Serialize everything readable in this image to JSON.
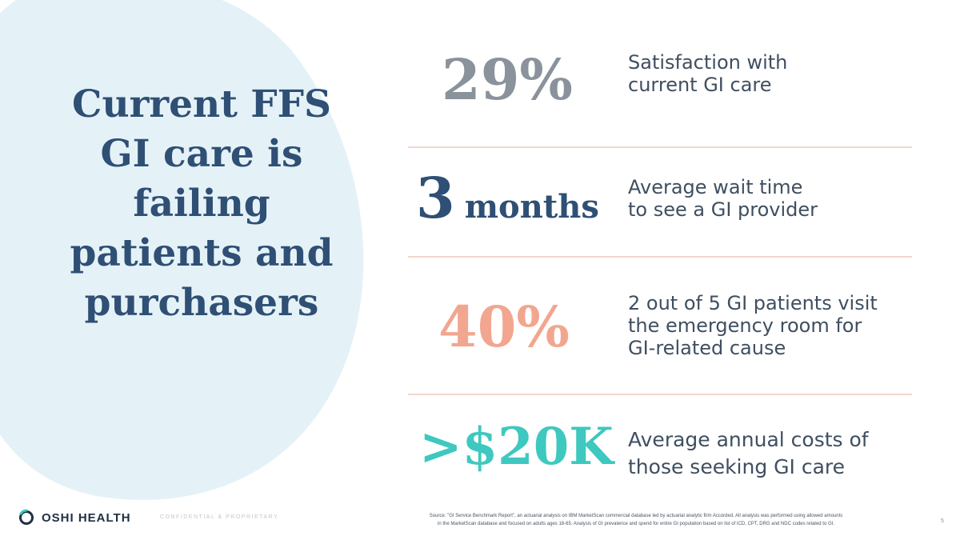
{
  "headline": {
    "lines": [
      "Current FFS",
      "GI care is",
      "failing",
      "patients and",
      "purchasers"
    ]
  },
  "stats": [
    {
      "value": "29%",
      "color": "#8a929c",
      "desc": [
        "Satisfaction with",
        "current GI care"
      ]
    },
    {
      "value": "3",
      "unit": "months",
      "color": "#2f4f74",
      "desc": [
        "Average wait time",
        "to see a GI provider"
      ]
    },
    {
      "value": "40%",
      "color": "#f2a68f",
      "desc": [
        "2 out of 5 GI patients visit",
        "the emergency room for",
        "GI-related cause"
      ]
    },
    {
      "value": ">$20K",
      "color": "#3ec8bf",
      "desc": [
        "Average annual costs of",
        "those seeking GI care"
      ]
    }
  ],
  "footer": {
    "logo_text": "OSHI HEALTH",
    "logo_icon": "oshi-ring-icon",
    "confidential": "CONFIDENTIAL & PROPRIETARY",
    "source_lines": [
      "Source: \"GI Service Benchmark Report\", an actuarial analysis on IBM MarketScan commercial database led by actuarial analytic firm Accorded. All analysis was performed using allowed amounts",
      "in the MarketScan database and focused on adults ages 18-65. Analysis of GI prevalence and spend for entire GI population based on list of ICD, CPT, DRG and NDC codes related to GI."
    ],
    "page_number": "5"
  },
  "colors": {
    "headline": "#2f4f74",
    "blob": "#e4f2f8",
    "divider": "#f2d7cf",
    "body_text": "#3f4f60"
  }
}
